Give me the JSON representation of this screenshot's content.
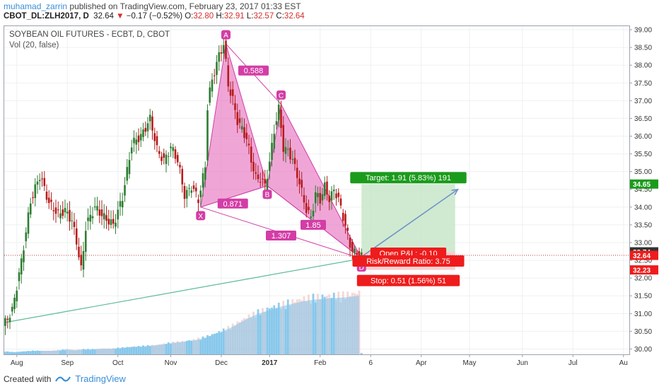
{
  "header": {
    "author": "muhamad_zarrin",
    "published": "published on TradingView.com, February 23, 2017 01:33 EST",
    "symbol": "CBOT_DL:ZLH2017, D",
    "last": "32.64",
    "change": "−0.17 (−0.52%)",
    "o_label": "O:",
    "o": "32.80",
    "h_label": "H:",
    "h": "32.91",
    "l_label": "L:",
    "l": "32.57",
    "c_label": "C:",
    "c": "32.64"
  },
  "legend": {
    "title": "SOYBEAN OIL FUTURES - ECBT, D, CBOT",
    "volume": "Vol (20, false)"
  },
  "footer": {
    "created_with": "Created with",
    "brand": "TradingView"
  },
  "colors": {
    "up": "#2e7d32",
    "down": "#b71c1c",
    "pattern_fill": "#e56bbd",
    "pattern_stroke": "#d33da6",
    "target_zone": "#c8e6c9",
    "stop_zone": "#f8c9c9",
    "target_label": "#1b9b1b",
    "stop_label": "#ee1c1c",
    "volume_bar": "#7ec3ea",
    "trend_line": "#5dbb98",
    "arrow": "#6f93c9"
  },
  "chart_data": {
    "type": "candlestick",
    "ylim": [
      29.85,
      39.1
    ],
    "y_ticks": [
      "39.00",
      "38.50",
      "38.00",
      "37.50",
      "37.00",
      "36.50",
      "36.00",
      "35.50",
      "35.00",
      "34.50",
      "34.00",
      "33.50",
      "33.00",
      "32.50",
      "32.00",
      "31.50",
      "31.00",
      "30.50",
      "30.00"
    ],
    "x_labels": [
      {
        "label": "Aug",
        "t": 5
      },
      {
        "label": "Sep",
        "t": 27
      },
      {
        "label": "Oct",
        "t": 49
      },
      {
        "label": "Nov",
        "t": 72
      },
      {
        "label": "Dec",
        "t": 94
      },
      {
        "label": "2017",
        "t": 115
      },
      {
        "label": "Feb",
        "t": 137
      },
      {
        "label": "6",
        "t": 159
      },
      {
        "label": "Apr",
        "t": 181
      },
      {
        "label": "May",
        "t": 202
      },
      {
        "label": "Jun",
        "t": 225
      },
      {
        "label": "Jul",
        "t": 247
      },
      {
        "label": "Au",
        "t": 269
      }
    ],
    "price_path": [
      [
        0,
        30.65
      ],
      [
        4,
        31.1
      ],
      [
        8,
        32.5
      ],
      [
        12,
        34.2
      ],
      [
        16,
        34.9
      ],
      [
        20,
        34.1
      ],
      [
        24,
        33.8
      ],
      [
        27,
        33.9
      ],
      [
        30,
        33.6
      ],
      [
        32,
        33.0
      ],
      [
        34,
        32.2
      ],
      [
        36,
        33.5
      ],
      [
        40,
        34.0
      ],
      [
        44,
        33.7
      ],
      [
        48,
        33.5
      ],
      [
        52,
        34.3
      ],
      [
        56,
        35.8
      ],
      [
        60,
        36.0
      ],
      [
        64,
        36.5
      ],
      [
        67,
        35.6
      ],
      [
        70,
        35.3
      ],
      [
        73,
        35.7
      ],
      [
        76,
        35.3
      ],
      [
        79,
        34.3
      ],
      [
        82,
        34.6
      ],
      [
        85,
        34.2
      ],
      [
        88,
        35.2
      ],
      [
        89,
        37.0
      ],
      [
        91,
        37.6
      ],
      [
        94,
        38.3
      ],
      [
        96,
        38.6
      ],
      [
        98,
        37.4
      ],
      [
        100,
        37.0
      ],
      [
        102,
        36.4
      ],
      [
        104,
        36.2
      ],
      [
        106,
        35.9
      ],
      [
        108,
        35.3
      ],
      [
        110,
        34.8
      ],
      [
        112,
        34.8
      ],
      [
        114,
        34.6
      ],
      [
        116,
        35.3
      ],
      [
        118,
        36.2
      ],
      [
        120,
        36.8
      ],
      [
        122,
        35.6
      ],
      [
        124,
        35.6
      ],
      [
        126,
        35.3
      ],
      [
        128,
        34.9
      ],
      [
        130,
        34.4
      ],
      [
        132,
        33.9
      ],
      [
        134,
        33.7
      ],
      [
        136,
        34.4
      ],
      [
        138,
        34.2
      ],
      [
        140,
        34.6
      ],
      [
        142,
        34.2
      ],
      [
        144,
        34.5
      ],
      [
        146,
        34.2
      ],
      [
        148,
        33.7
      ],
      [
        150,
        33.2
      ],
      [
        151,
        32.9
      ],
      [
        153,
        32.7
      ],
      [
        155,
        32.64
      ]
    ],
    "volume": [
      [
        0,
        0.04
      ],
      [
        4,
        0.03
      ],
      [
        8,
        0.04
      ],
      [
        12,
        0.05
      ],
      [
        16,
        0.05
      ],
      [
        20,
        0.05
      ],
      [
        24,
        0.06
      ],
      [
        27,
        0.07
      ],
      [
        30,
        0.06
      ],
      [
        34,
        0.07
      ],
      [
        38,
        0.07
      ],
      [
        42,
        0.08
      ],
      [
        46,
        0.08
      ],
      [
        50,
        0.09
      ],
      [
        54,
        0.1
      ],
      [
        58,
        0.11
      ],
      [
        62,
        0.12
      ],
      [
        66,
        0.13
      ],
      [
        70,
        0.15
      ],
      [
        74,
        0.17
      ],
      [
        78,
        0.18
      ],
      [
        82,
        0.2
      ],
      [
        86,
        0.23
      ],
      [
        90,
        0.27
      ],
      [
        94,
        0.32
      ],
      [
        98,
        0.38
      ],
      [
        102,
        0.45
      ],
      [
        106,
        0.52
      ],
      [
        110,
        0.58
      ],
      [
        114,
        0.62
      ],
      [
        118,
        0.66
      ],
      [
        122,
        0.7
      ],
      [
        126,
        0.73
      ],
      [
        130,
        0.76
      ],
      [
        134,
        0.78
      ],
      [
        138,
        0.79
      ],
      [
        142,
        0.8
      ],
      [
        146,
        0.81
      ],
      [
        150,
        0.82
      ],
      [
        154,
        0.84
      ],
      [
        155,
        0.02
      ]
    ],
    "pattern": {
      "points": [
        {
          "label": "X",
          "t": 85,
          "p": 34.0
        },
        {
          "label": "A",
          "t": 96,
          "p": 38.6
        },
        {
          "label": "B",
          "t": 114,
          "p": 34.6
        },
        {
          "label": "C",
          "t": 120,
          "p": 36.9
        },
        {
          "label": "D",
          "t": 155,
          "p": 32.55
        }
      ],
      "ratios": [
        {
          "label": "0.588",
          "t": 108,
          "p": 37.85
        },
        {
          "label": "0.871",
          "t": 99,
          "p": 34.1
        },
        {
          "label": "1.307",
          "t": 120,
          "p": 33.2
        },
        {
          "label": "1.85",
          "t": 134,
          "p": 33.5
        }
      ]
    },
    "position": {
      "t_start": 155,
      "t_end": 205,
      "entry": 32.74,
      "target": 34.65,
      "stop": 32.23,
      "target_label": "Target: 1.91 (5.83%) 191",
      "pnl_label": "Open P&L: -0.10",
      "rr_label": "Risk/Reward Ratio: 3.75",
      "stop_label": "Stop: 0.51 (1.56%) 51"
    },
    "price_tags": [
      {
        "value": "34.65",
        "price": 34.65,
        "color": "#1b9b1b"
      },
      {
        "value": "32.74",
        "price": 32.74,
        "color": "#333333"
      },
      {
        "value": "32.64",
        "price": 32.64,
        "color": "#ee1c1c"
      },
      {
        "value": "32.23",
        "price": 32.23,
        "color": "#ee1c1c"
      }
    ],
    "trend_line": {
      "t1": 0,
      "p1": 30.75,
      "t2": 155,
      "p2": 32.55
    },
    "projection_arrow": {
      "t1": 155,
      "p1": 32.6,
      "t2": 200,
      "p2": 34.5
    },
    "last_price": 32.64
  }
}
